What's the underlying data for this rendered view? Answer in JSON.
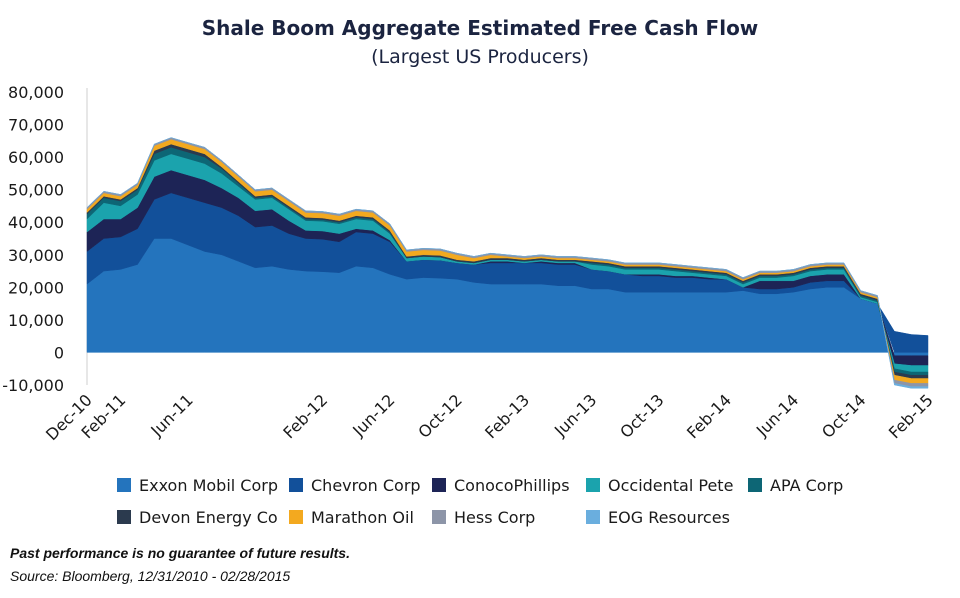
{
  "chart_data": {
    "type": "area",
    "stacked": true,
    "title": "Shale Boom Aggregate Estimated Free Cash Flow",
    "subtitle": "(Largest US Producers)",
    "xlabel": "",
    "ylabel": "",
    "ylim": [
      -10000,
      80000
    ],
    "yticks": [
      -10000,
      0,
      10000,
      20000,
      30000,
      40000,
      50000,
      60000,
      70000,
      80000
    ],
    "ytick_labels": [
      "-10,000",
      "0",
      "10,000",
      "20,000",
      "30,000",
      "40,000",
      "50,000",
      "60,000",
      "70,000",
      "80,000"
    ],
    "xtick_labels": [
      {
        "label": "Dec-10",
        "index": 0
      },
      {
        "label": "Feb-11",
        "index": 2
      },
      {
        "label": "Jun-11",
        "index": 6
      },
      {
        "label": "Feb-12",
        "index": 14
      },
      {
        "label": "Jun-12",
        "index": 18
      },
      {
        "label": "Oct-12",
        "index": 22
      },
      {
        "label": "Feb-13",
        "index": 26
      },
      {
        "label": "Jun-13",
        "index": 30
      },
      {
        "label": "Oct-13",
        "index": 34
      },
      {
        "label": "Feb-14",
        "index": 38
      },
      {
        "label": "Jun-14",
        "index": 42
      },
      {
        "label": "Oct-14",
        "index": 46
      },
      {
        "label": "Feb-15",
        "index": 50
      }
    ],
    "x": [
      "Dec-10",
      "Jan-11",
      "Feb-11",
      "Mar-11",
      "Apr-11",
      "May-11",
      "Jun-11",
      "Jul-11",
      "Aug-11",
      "Sep-11",
      "Oct-11",
      "Nov-11",
      "Dec-11",
      "Jan-12",
      "Feb-12",
      "Mar-12",
      "Apr-12",
      "May-12",
      "Jun-12",
      "Jul-12",
      "Aug-12",
      "Sep-12",
      "Oct-12",
      "Nov-12",
      "Dec-12",
      "Jan-13",
      "Feb-13",
      "Mar-13",
      "Apr-13",
      "May-13",
      "Jun-13",
      "Jul-13",
      "Aug-13",
      "Sep-13",
      "Oct-13",
      "Nov-13",
      "Dec-13",
      "Jan-14",
      "Feb-14",
      "Mar-14",
      "Apr-14",
      "May-14",
      "Jun-14",
      "Jul-14",
      "Aug-14",
      "Sep-14",
      "Oct-14",
      "Nov-14",
      "Dec-14",
      "Jan-15",
      "Feb-15"
    ],
    "series": [
      {
        "name": "Exxon Mobil Corp",
        "color": "#2474bd",
        "values": [
          21000,
          25000,
          25500,
          27000,
          35000,
          35000,
          33000,
          31000,
          30000,
          28000,
          26000,
          26500,
          25500,
          25000,
          24800,
          24500,
          26500,
          26000,
          24000,
          22500,
          23000,
          22800,
          22500,
          21500,
          21000,
          21000,
          21000,
          21000,
          20500,
          20500,
          19500,
          19500,
          18500,
          18500,
          18500,
          18500,
          18500,
          18500,
          18500,
          19000,
          18000,
          18000,
          18500,
          19500,
          20000,
          20000,
          16500,
          15000,
          -1000,
          -1000,
          -1000
        ]
      },
      {
        "name": "Chevron Corp",
        "color": "#12509a",
        "values": [
          10000,
          10000,
          10000,
          11000,
          12000,
          14000,
          14500,
          15000,
          14500,
          14000,
          12500,
          12500,
          11000,
          10000,
          10000,
          9500,
          10500,
          10500,
          10000,
          5500,
          5500,
          5500,
          5000,
          5500,
          6500,
          6500,
          6500,
          6500,
          6500,
          6500,
          6000,
          5500,
          5500,
          5000,
          5000,
          4500,
          4500,
          4000,
          4000,
          1000,
          1500,
          1500,
          1500,
          2000,
          2000,
          2000,
          0,
          0,
          6500,
          5500,
          5200
        ]
      },
      {
        "name": "ConocoPhillips",
        "color": "#1d2456",
        "values": [
          6000,
          6000,
          5500,
          6500,
          7000,
          7000,
          7000,
          7000,
          6000,
          5500,
          5000,
          5000,
          4000,
          2500,
          2500,
          2500,
          1000,
          1000,
          500,
          0,
          0,
          0,
          0,
          0,
          500,
          500,
          0,
          500,
          500,
          500,
          0,
          0,
          0,
          500,
          500,
          500,
          500,
          500,
          0,
          0,
          2500,
          2500,
          2000,
          2000,
          2000,
          2000,
          0,
          0,
          -2500,
          -3000,
          -3000
        ]
      },
      {
        "name": "Occidental Pete",
        "color": "#1ba3ad",
        "values": [
          4000,
          5000,
          4000,
          4000,
          5000,
          5000,
          5000,
          5000,
          4500,
          3500,
          3500,
          3500,
          3500,
          3000,
          3000,
          3000,
          3000,
          3000,
          2000,
          1000,
          1000,
          1000,
          500,
          500,
          500,
          500,
          500,
          500,
          500,
          500,
          1500,
          1500,
          1500,
          1500,
          1500,
          1500,
          1000,
          1000,
          1000,
          1000,
          1000,
          1000,
          1500,
          1500,
          1500,
          1500,
          500,
          500,
          -1500,
          -2000,
          -2000
        ]
      },
      {
        "name": "APA Corp",
        "color": "#0d6675",
        "values": [
          1500,
          1500,
          1500,
          1500,
          2000,
          2000,
          2000,
          2000,
          1500,
          1000,
          500,
          500,
          500,
          500,
          500,
          500,
          500,
          500,
          500,
          0,
          0,
          0,
          0,
          0,
          0,
          0,
          0,
          0,
          0,
          0,
          500,
          500,
          500,
          500,
          500,
          500,
          500,
          500,
          500,
          500,
          500,
          500,
          500,
          500,
          500,
          500,
          500,
          500,
          -1000,
          -1000,
          -1000
        ]
      },
      {
        "name": "Devon Energy Co",
        "color": "#2b3a4e",
        "values": [
          500,
          500,
          500,
          500,
          1000,
          1000,
          1000,
          1000,
          500,
          500,
          500,
          500,
          500,
          500,
          500,
          500,
          500,
          500,
          500,
          500,
          500,
          500,
          500,
          500,
          500,
          500,
          500,
          500,
          500,
          500,
          500,
          500,
          500,
          500,
          500,
          500,
          500,
          500,
          500,
          500,
          500,
          500,
          500,
          500,
          500,
          500,
          500,
          500,
          -1000,
          -1000,
          -1000
        ]
      },
      {
        "name": "Marathon Oil",
        "color": "#f3a91f",
        "values": [
          1000,
          1000,
          1000,
          1000,
          1500,
          1500,
          1500,
          1500,
          1500,
          1500,
          1500,
          1500,
          1500,
          1500,
          1500,
          1500,
          1500,
          1500,
          1500,
          1500,
          1500,
          1500,
          1500,
          1000,
          1000,
          500,
          500,
          500,
          500,
          500,
          500,
          500,
          500,
          500,
          500,
          500,
          500,
          500,
          500,
          500,
          500,
          500,
          500,
          500,
          500,
          500,
          500,
          500,
          -1500,
          -1500,
          -1500
        ]
      },
      {
        "name": "Hess Corp",
        "color": "#8d95a8",
        "values": [
          500,
          500,
          500,
          500,
          500,
          500,
          500,
          500,
          500,
          500,
          500,
          500,
          500,
          500,
          500,
          500,
          500,
          500,
          500,
          500,
          500,
          500,
          500,
          500,
          500,
          500,
          500,
          500,
          500,
          500,
          500,
          500,
          500,
          500,
          500,
          500,
          500,
          500,
          500,
          500,
          500,
          500,
          500,
          500,
          500,
          500,
          500,
          500,
          -1000,
          -1000,
          -1000
        ]
      },
      {
        "name": "EOG Resources",
        "color": "#6aaede",
        "values": [
          0,
          0,
          0,
          0,
          0,
          0,
          0,
          0,
          0,
          0,
          0,
          0,
          0,
          0,
          0,
          0,
          0,
          0,
          0,
          0,
          0,
          0,
          0,
          0,
          0,
          0,
          0,
          0,
          0,
          0,
          0,
          0,
          0,
          0,
          0,
          0,
          0,
          0,
          0,
          0,
          0,
          0,
          0,
          0,
          0,
          0,
          0,
          0,
          -500,
          -500,
          -500
        ]
      }
    ],
    "legend": {
      "position": "bottom",
      "columns": 5
    }
  },
  "footer": {
    "disclaimer": "Past performance is no guarantee of future results.",
    "source": "Source: Bloomberg, 12/31/2010 - 02/28/2015"
  }
}
